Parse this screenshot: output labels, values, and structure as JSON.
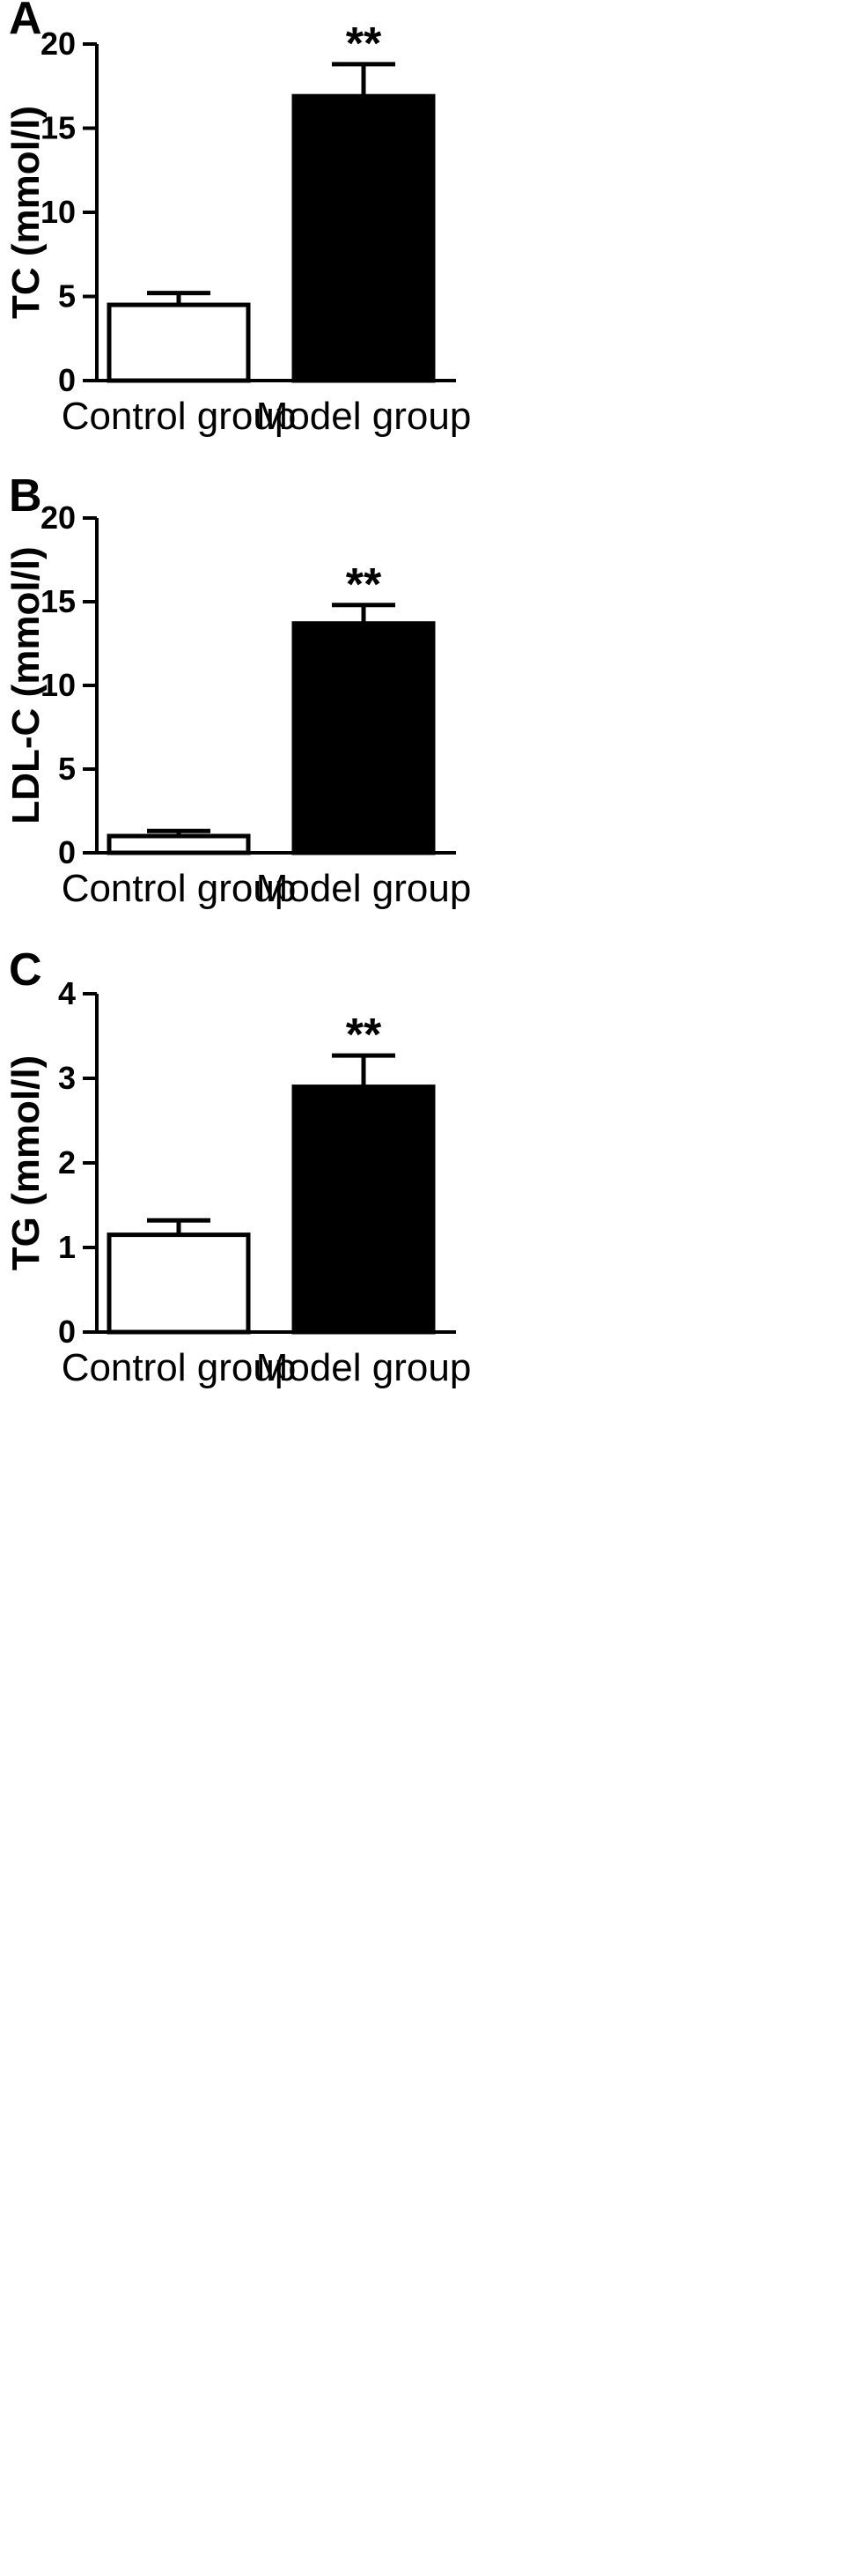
{
  "chart_data": [
    {
      "type": "bar",
      "panel": "A",
      "categories": [
        "Control group",
        "Model group"
      ],
      "values": [
        4.5,
        16.9
      ],
      "errors": [
        0.7,
        1.9
      ],
      "ylabel": "TC (mmol/l)",
      "ylim": [
        0,
        20
      ],
      "yticks": [
        0,
        5,
        10,
        15,
        20
      ],
      "significance": [
        "",
        "**"
      ],
      "bar_colors": [
        "#ffffff",
        "#000000"
      ]
    },
    {
      "type": "bar",
      "panel": "B",
      "categories": [
        "Control group",
        "Model group"
      ],
      "values": [
        1.0,
        13.7
      ],
      "errors": [
        0.3,
        1.1
      ],
      "ylabel": "LDL-C (mmol/l)",
      "ylim": [
        0,
        20
      ],
      "yticks": [
        0,
        5,
        10,
        15,
        20
      ],
      "significance": [
        "",
        "**"
      ],
      "bar_colors": [
        "#ffffff",
        "#000000"
      ]
    },
    {
      "type": "bar",
      "panel": "C",
      "categories": [
        "Control group",
        "Model group"
      ],
      "values": [
        1.15,
        2.9
      ],
      "errors": [
        0.17,
        0.37
      ],
      "ylabel": "TG (mmol/l)",
      "ylim": [
        0,
        4
      ],
      "yticks": [
        0,
        1,
        2,
        3,
        4
      ],
      "significance": [
        "",
        "**"
      ],
      "bar_colors": [
        "#ffffff",
        "#000000"
      ]
    }
  ]
}
